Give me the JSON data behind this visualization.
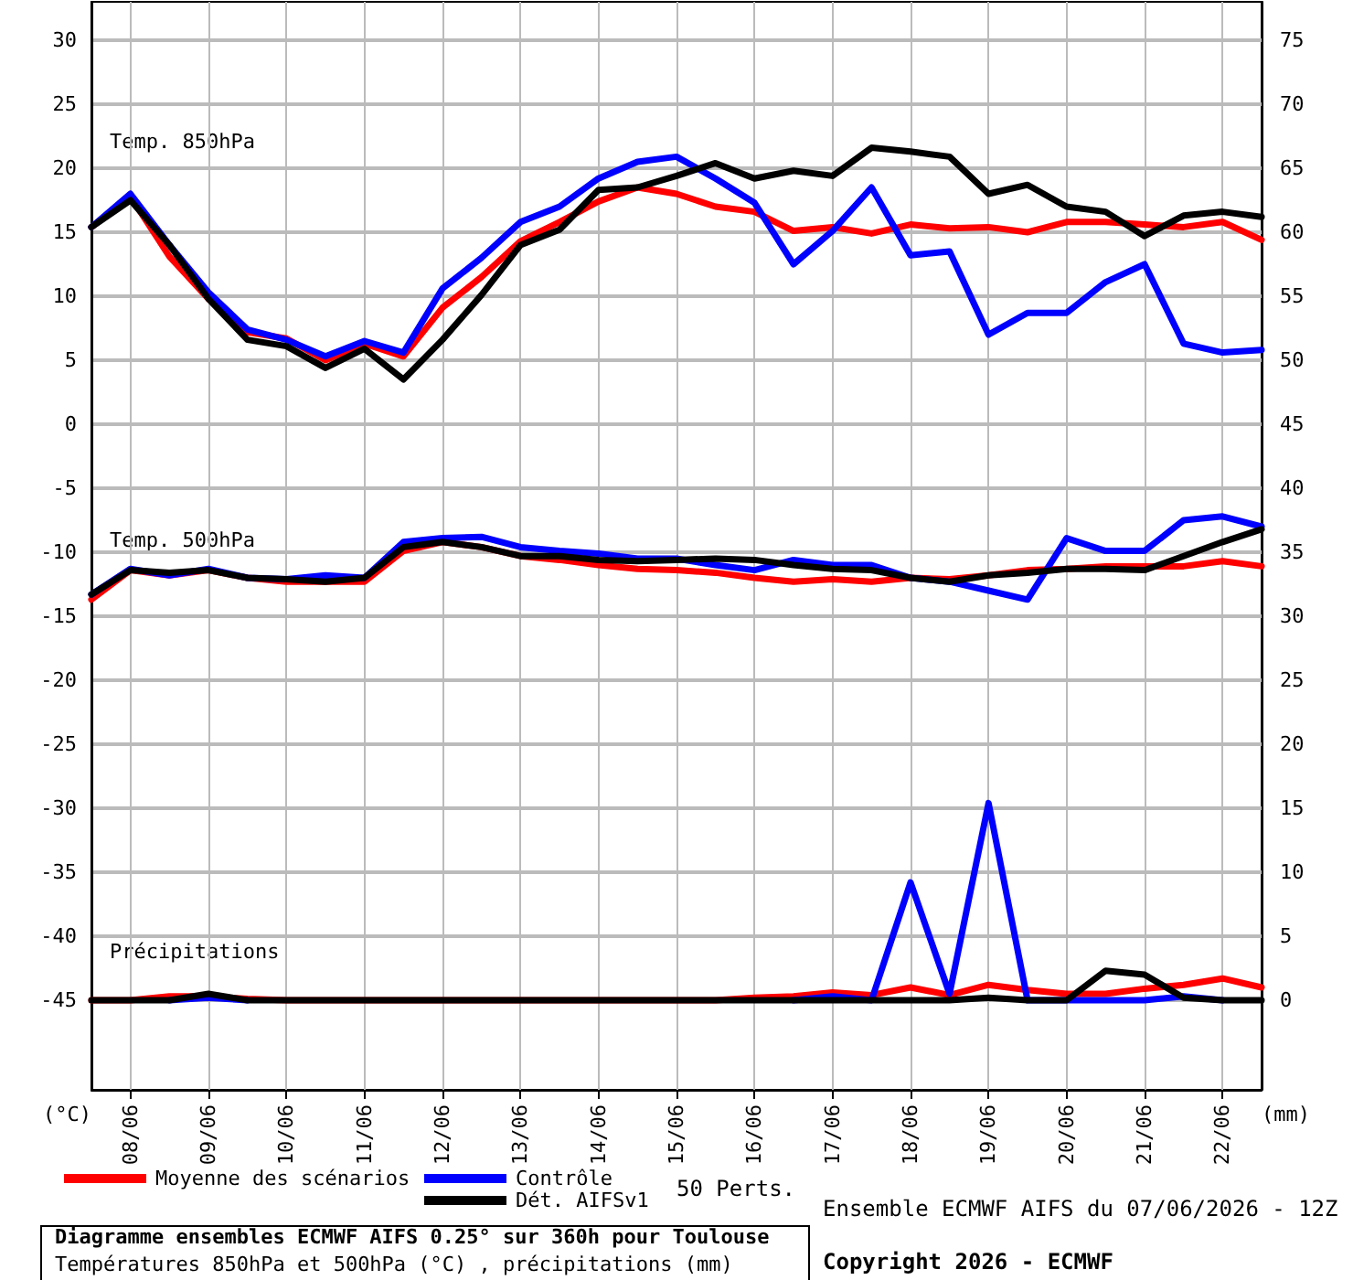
{
  "chart_data": {
    "type": "line",
    "title": "Diagramme ensembles ECMWF AIFS 0.25° sur 360h pour Toulouse",
    "subtitle": "Températures 850hPa et 500hPa (°C) , précipitations (mm)",
    "ylabel": "(°C)",
    "y2label": "(mm)",
    "annotations": [
      "Temp. 850hPa",
      "Temp. 500hPa",
      "Précipitations",
      "50 Perts.",
      "Ensemble ECMWF AIFS du 07/06/2026 - 12Z",
      "Copyright 2026 - ECMWF"
    ],
    "x": [
      "2026-06-07T12:00",
      "2026-06-08T00:00",
      "2026-06-08T12:00",
      "2026-06-09T00:00",
      "2026-06-09T12:00",
      "2026-06-10T00:00",
      "2026-06-10T12:00",
      "2026-06-11T00:00",
      "2026-06-11T12:00",
      "2026-06-12T00:00",
      "2026-06-12T12:00",
      "2026-06-13T00:00",
      "2026-06-13T12:00",
      "2026-06-14T00:00",
      "2026-06-14T12:00",
      "2026-06-15T00:00",
      "2026-06-15T12:00",
      "2026-06-16T00:00",
      "2026-06-16T12:00",
      "2026-06-17T00:00",
      "2026-06-17T12:00",
      "2026-06-18T00:00",
      "2026-06-18T12:00",
      "2026-06-19T00:00",
      "2026-06-19T12:00",
      "2026-06-20T00:00",
      "2026-06-20T12:00",
      "2026-06-21T00:00",
      "2026-06-21T12:00",
      "2026-06-22T00:00",
      "2026-06-22T12:00"
    ],
    "xlim": [
      "2026-06-07T12:00",
      "2026-06-22T12:00"
    ],
    "xticks": [
      {
        "value": "2026-06-08",
        "label": "08/06"
      },
      {
        "value": "2026-06-09",
        "label": "09/06"
      },
      {
        "value": "2026-06-10",
        "label": "10/06"
      },
      {
        "value": "2026-06-11",
        "label": "11/06"
      },
      {
        "value": "2026-06-12",
        "label": "12/06"
      },
      {
        "value": "2026-06-13",
        "label": "13/06"
      },
      {
        "value": "2026-06-14",
        "label": "14/06"
      },
      {
        "value": "2026-06-15",
        "label": "15/06"
      },
      {
        "value": "2026-06-16",
        "label": "16/06"
      },
      {
        "value": "2026-06-17",
        "label": "17/06"
      },
      {
        "value": "2026-06-18",
        "label": "18/06"
      },
      {
        "value": "2026-06-19",
        "label": "19/06"
      },
      {
        "value": "2026-06-20",
        "label": "20/06"
      },
      {
        "value": "2026-06-21",
        "label": "21/06"
      },
      {
        "value": "2026-06-22",
        "label": "22/06"
      }
    ],
    "ylim": [
      -52,
      33
    ],
    "yticks": [
      -45,
      -40,
      -35,
      -30,
      -25,
      -20,
      -15,
      -10,
      -5,
      0,
      5,
      10,
      15,
      20,
      25,
      30
    ],
    "y2lim": [
      -7,
      78
    ],
    "y2ticks": [
      0,
      5,
      10,
      15,
      20,
      25,
      30,
      35,
      40,
      45,
      50,
      55,
      60,
      65,
      70,
      75
    ],
    "grid": true,
    "legend": "bottom left",
    "series": [
      {
        "name": "Moyenne des scénarios",
        "color": "#ff0000",
        "values": [
          15.4,
          17.8,
          13.1,
          9.8,
          7.2,
          6.7,
          5.0,
          6.3,
          5.3,
          9.1,
          11.5,
          14.3,
          15.8,
          17.4,
          18.5,
          18.0,
          17.0,
          16.6,
          15.1,
          15.4,
          14.9,
          15.6,
          15.3,
          15.4,
          15.0,
          15.8,
          15.8,
          15.6,
          15.4,
          15.8,
          14.4
        ]
      },
      {
        "name": "Contrôle",
        "color": "#0000ff",
        "values": [
          15.4,
          18.0,
          14.0,
          10.3,
          7.4,
          6.6,
          5.3,
          6.5,
          5.6,
          10.6,
          13.0,
          15.8,
          17.0,
          19.2,
          20.5,
          20.9,
          19.2,
          17.3,
          12.5,
          15.1,
          18.5,
          13.2,
          13.5,
          7.0,
          8.7,
          8.7,
          11.1,
          12.5,
          6.3,
          5.6,
          5.8
        ]
      },
      {
        "name": "Dét. AIFSv1",
        "color": "#000000",
        "values": [
          15.4,
          17.5,
          14.0,
          9.8,
          6.6,
          6.1,
          4.4,
          5.9,
          3.5,
          6.6,
          10.1,
          14.0,
          15.2,
          18.3,
          18.5,
          19.4,
          20.4,
          19.2,
          19.8,
          19.4,
          21.6,
          21.3,
          20.9,
          18.0,
          18.7,
          17.0,
          16.6,
          14.7,
          16.3,
          16.6,
          16.2
        ]
      },
      {
        "color": "#ff0000",
        "values": [
          -13.7,
          -11.4,
          -11.8,
          -11.4,
          -12.0,
          -12.3,
          -12.3,
          -12.3,
          -9.9,
          -9.2,
          -9.6,
          -10.3,
          -10.6,
          -11.0,
          -11.3,
          -11.4,
          -11.6,
          -12.0,
          -12.3,
          -12.1,
          -12.3,
          -12.0,
          -12.1,
          -11.8,
          -11.4,
          -11.3,
          -11.1,
          -11.1,
          -11.1,
          -10.7,
          -11.1
        ]
      },
      {
        "color": "#0000ff",
        "values": [
          -13.3,
          -11.3,
          -11.8,
          -11.3,
          -12.0,
          -12.1,
          -11.8,
          -12.0,
          -9.2,
          -8.9,
          -8.8,
          -9.6,
          -9.9,
          -10.1,
          -10.5,
          -10.5,
          -11.0,
          -11.4,
          -10.6,
          -11.0,
          -11.0,
          -12.0,
          -12.3,
          -13.0,
          -13.7,
          -8.9,
          -9.9,
          -9.9,
          -7.5,
          -7.2,
          -8.0
        ]
      },
      {
        "color": "#000000",
        "values": [
          -13.3,
          -11.4,
          -11.6,
          -11.4,
          -12.0,
          -12.1,
          -12.3,
          -12.0,
          -9.6,
          -9.2,
          -9.6,
          -10.3,
          -10.3,
          -10.6,
          -10.7,
          -10.6,
          -10.5,
          -10.6,
          -11.0,
          -11.3,
          -11.4,
          -12.0,
          -12.3,
          -11.8,
          -11.6,
          -11.3,
          -11.3,
          -11.4,
          -10.3,
          -9.2,
          -8.2
        ]
      },
      {
        "color": "#ff0000",
        "axis": "y2",
        "values": [
          0,
          0,
          0.3,
          0.3,
          0.1,
          0,
          0,
          0,
          0,
          0,
          0,
          0,
          0,
          0,
          0,
          0,
          0,
          0.2,
          0.3,
          0.6,
          0.4,
          1.0,
          0.4,
          1.2,
          0.8,
          0.5,
          0.5,
          0.9,
          1.2,
          1.7,
          1.0
        ]
      },
      {
        "color": "#0000ff",
        "axis": "y2",
        "values": [
          null,
          null,
          0,
          0.2,
          0,
          null,
          null,
          null,
          null,
          null,
          null,
          null,
          null,
          null,
          null,
          null,
          null,
          null,
          0,
          0.3,
          0,
          9.2,
          0.5,
          15.4,
          0,
          0,
          0,
          0,
          0.3,
          0,
          null
        ]
      },
      {
        "color": "#000000",
        "axis": "y2",
        "values": [
          0,
          0,
          0,
          0.5,
          0,
          0,
          0,
          0,
          0,
          0,
          0,
          0,
          0,
          0,
          0,
          0,
          0,
          0,
          0,
          0,
          0,
          0,
          0,
          0.2,
          0,
          0,
          2.3,
          2.0,
          0.2,
          0,
          0
        ]
      }
    ]
  }
}
